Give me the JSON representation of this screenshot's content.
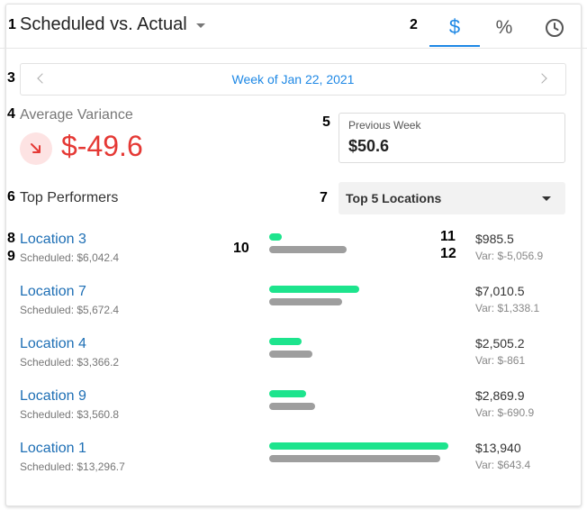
{
  "markers": [
    "1",
    "2",
    "3",
    "4",
    "5",
    "6",
    "7",
    "8",
    "9",
    "10",
    "11",
    "12"
  ],
  "header": {
    "title": "Scheduled vs. Actual",
    "tabs": [
      {
        "name": "dollar",
        "label": "$",
        "icon": "dollar-icon",
        "active": true
      },
      {
        "name": "percent",
        "label": "%",
        "icon": "percent-icon",
        "active": false
      },
      {
        "name": "time",
        "label": "",
        "icon": "clock-icon",
        "active": false
      }
    ]
  },
  "week": {
    "label": "Week of Jan 22, 2021"
  },
  "average": {
    "label": "Average Variance",
    "value": "$-49.6",
    "trend_icon": "trend-down-icon",
    "color": "#e53935"
  },
  "previous": {
    "label": "Previous Week",
    "value": "$50.6"
  },
  "performers": {
    "label": "Top Performers",
    "select": "Top 5 Locations",
    "bar_max": 14000,
    "colors": {
      "actual": "#1de48d",
      "scheduled": "#9e9e9e"
    },
    "locations": [
      {
        "name": "Location 3",
        "scheduled_text": "Scheduled: $6,042.4",
        "actual_text": "$985.5",
        "var_text": "Var: $-5,056.9",
        "actual": 985.5,
        "scheduled": 6042.4
      },
      {
        "name": "Location 7",
        "scheduled_text": "Scheduled: $5,672.4",
        "actual_text": "$7,010.5",
        "var_text": "Var: $1,338.1",
        "actual": 7010.5,
        "scheduled": 5672.4
      },
      {
        "name": "Location 4",
        "scheduled_text": "Scheduled: $3,366.2",
        "actual_text": "$2,505.2",
        "var_text": "Var: $-861",
        "actual": 2505.2,
        "scheduled": 3366.2
      },
      {
        "name": "Location 9",
        "scheduled_text": "Scheduled: $3,560.8",
        "actual_text": "$2,869.9",
        "var_text": "Var: $-690.9",
        "actual": 2869.9,
        "scheduled": 3560.8
      },
      {
        "name": "Location 1",
        "scheduled_text": "Scheduled: $13,296.7",
        "actual_text": "$13,940",
        "var_text": "Var: $643.4",
        "actual": 13940,
        "scheduled": 13296.7
      }
    ]
  }
}
